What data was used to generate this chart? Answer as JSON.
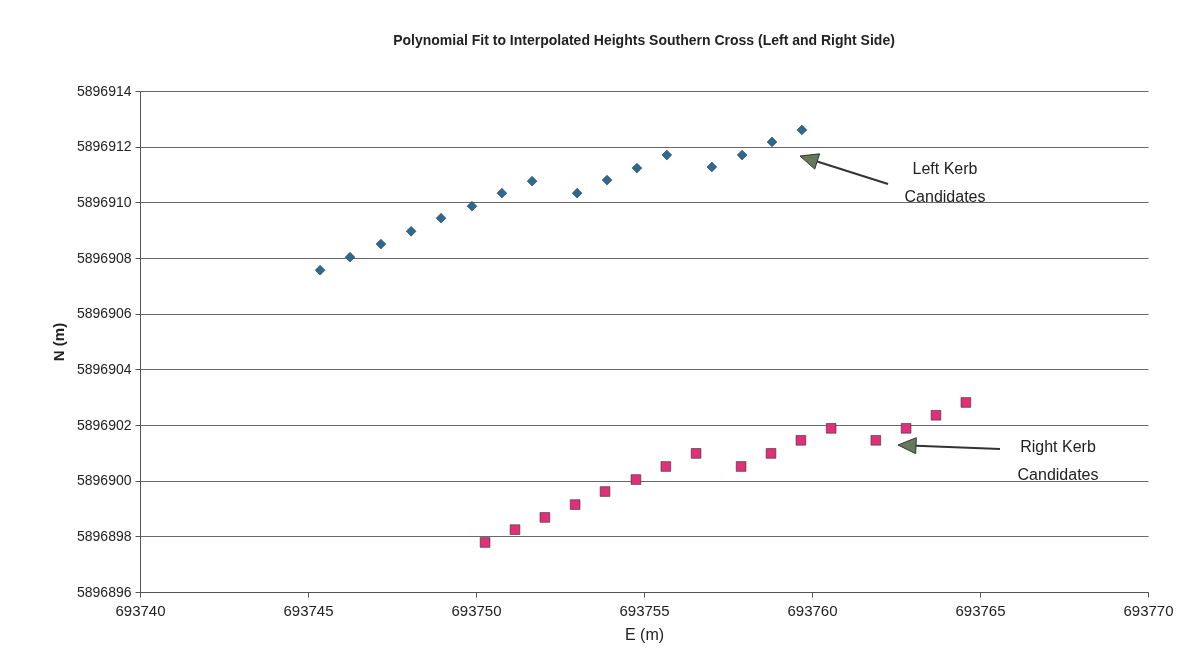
{
  "chart_data": {
    "type": "scatter",
    "title": "Polynomial Fit to Interpolated Heights Southern Cross (Left and Right Side)",
    "xlabel": "E (m)",
    "ylabel": "N (m)",
    "xlim": [
      693740,
      693770
    ],
    "xticks": [
      693740,
      693745,
      693750,
      693755,
      693760,
      693765,
      693770
    ],
    "ylim": [
      5896896,
      5896914
    ],
    "yticks": [
      5896896,
      5896898,
      5896900,
      5896902,
      5896904,
      5896906,
      5896908,
      5896910,
      5896912,
      5896914
    ],
    "grid": "y",
    "series": [
      {
        "color": "#2a6b96",
        "marker": "diamond",
        "x": [
          693745.36,
          693746.25,
          693747.17,
          693748.07,
          693748.96,
          693749.88,
          693750.77,
          693751.67,
          693753.01,
          693753.9,
          693754.79,
          693755.68,
          693757.02,
          693757.92,
          693758.81,
          693759.7
        ],
        "values": [
          5896907.56,
          5896908.03,
          5896908.5,
          5896908.96,
          5896909.43,
          5896909.86,
          5896910.33,
          5896910.76,
          5896910.33,
          5896910.8,
          5896911.23,
          5896911.7,
          5896911.27,
          5896911.7,
          5896912.17,
          5896912.6
        ]
      },
      {
        "color": "#e0307a",
        "marker": "square",
        "x": [
          693750.27,
          693751.16,
          693752.05,
          693752.95,
          693753.84,
          693754.76,
          693755.65,
          693756.55,
          693757.89,
          693758.78,
          693759.67,
          693760.57,
          693761.9,
          693762.8,
          693763.69,
          693764.58
        ],
        "values": [
          5896897.78,
          5896898.24,
          5896898.68,
          5896899.14,
          5896899.61,
          5896900.04,
          5896900.51,
          5896900.98,
          5896900.51,
          5896900.98,
          5896901.45,
          5896901.88,
          5896901.45,
          5896901.88,
          5896902.35,
          5896902.81
        ]
      }
    ],
    "annotations": [
      "Left Kerb\nCandidates",
      "Right Kerb\nCandidates"
    ]
  }
}
